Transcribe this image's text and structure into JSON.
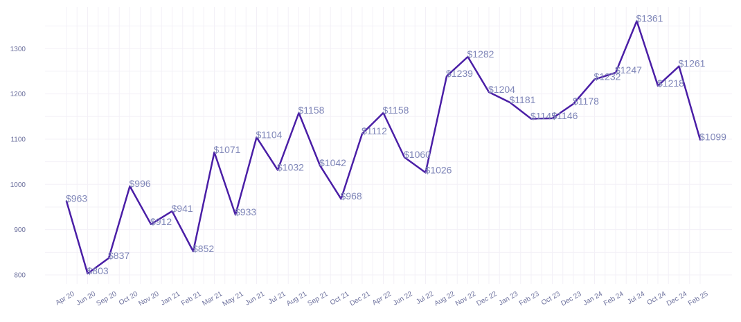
{
  "chart_data": {
    "type": "line",
    "title": "",
    "xlabel": "",
    "ylabel": "",
    "categories": [
      "Apr 20",
      "Jun 20",
      "Sep 20",
      "Oct 20",
      "Nov 20",
      "Jan 21",
      "Feb 21",
      "Mar 21",
      "May 21",
      "Jun 21",
      "Jul 21",
      "Aug 21",
      "Sep 21",
      "Oct 21",
      "Dec 21",
      "Apr 22",
      "Jun 22",
      "Jul 22",
      "Aug 22",
      "Nov 22",
      "Dec 22",
      "Jan 23",
      "Feb 23",
      "Oct 23",
      "Dec 23",
      "Jan 24",
      "Feb 24",
      "Jul 24",
      "Oct 24",
      "Dec 24",
      "Feb 25"
    ],
    "values": [
      963,
      803,
      837,
      996,
      912,
      941,
      852,
      1071,
      933,
      1104,
      1032,
      1158,
      1042,
      968,
      1112,
      1158,
      1060,
      1026,
      1239,
      1282,
      1204,
      1181,
      1145,
      1146,
      1178,
      1232,
      1247,
      1361,
      1218,
      1261,
      1099
    ],
    "data_labels": [
      "$963",
      "$803",
      "$837",
      "$996",
      "$912",
      "$941",
      "$852",
      "$1071",
      "$933",
      "$1104",
      "$1032",
      "$1158",
      "$1042",
      "$968",
      "$1112",
      "$1158",
      "$1060",
      "$1026",
      "$1239",
      "$1282",
      "$1204",
      "$1181",
      "$1145",
      "$1146",
      "$1178",
      "$1232",
      "$1247",
      "$1361",
      "$1218",
      "$1261",
      "$1099"
    ],
    "y_ticks": [
      800,
      900,
      1000,
      1100,
      1200,
      1300
    ],
    "ylim": [
      783,
      1383
    ],
    "grid": true,
    "legend": "none",
    "colors": {
      "line": "#4a1ea6",
      "data_label": "#7f86b8",
      "tick_label": "#6b6f9c",
      "grid": "#f3f0f7"
    }
  }
}
